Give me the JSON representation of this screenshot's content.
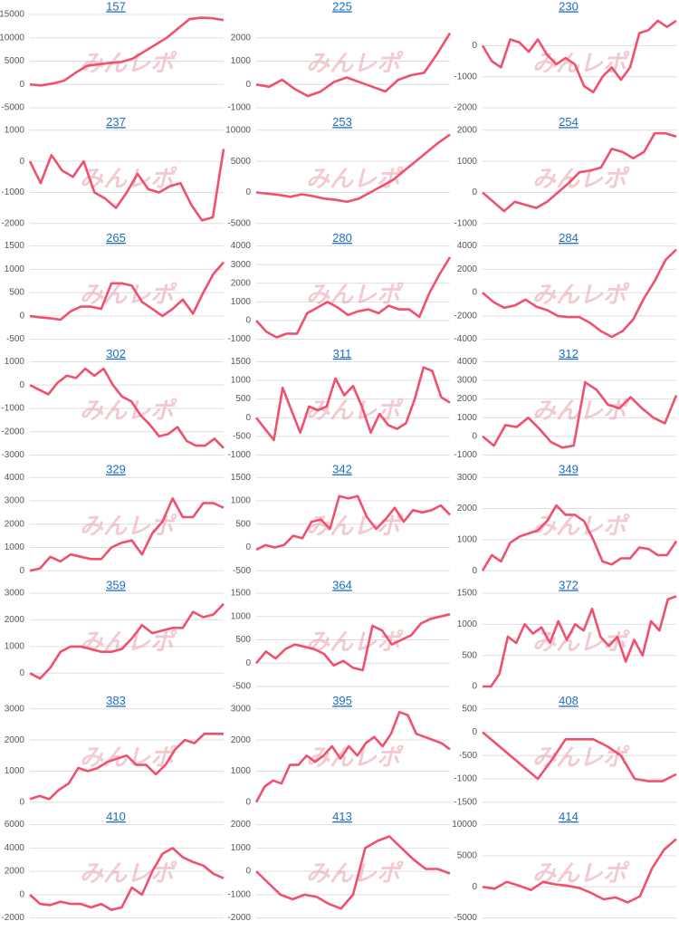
{
  "watermark": "みんレポ",
  "chart_data": [
    {
      "type": "line",
      "title": "157",
      "color": "#f0506e",
      "grid": true,
      "ylim": [
        -5000,
        15000
      ],
      "yticks": [
        -5000,
        0,
        5000,
        10000,
        15000
      ],
      "values": [
        0,
        -200,
        200,
        800,
        2500,
        4000,
        4300,
        4600,
        4800,
        5500,
        7000,
        8500,
        10000,
        12000,
        14000,
        14300,
        14200,
        13800
      ]
    },
    {
      "type": "line",
      "title": "225",
      "color": "#f0506e",
      "grid": true,
      "ylim": [
        -1000,
        3000
      ],
      "yticks": [
        -1000,
        0,
        1000,
        2000
      ],
      "values": [
        0,
        -100,
        200,
        -200,
        -500,
        -300,
        100,
        300,
        100,
        -100,
        -300,
        200,
        400,
        500,
        1300,
        2200
      ]
    },
    {
      "type": "line",
      "title": "230",
      "color": "#f0506e",
      "grid": true,
      "ylim": [
        -2000,
        1000
      ],
      "yticks": [
        -2000,
        -1000,
        0
      ],
      "values": [
        0,
        -500,
        -700,
        200,
        100,
        -200,
        200,
        -300,
        -600,
        -400,
        -600,
        -1300,
        -1500,
        -1000,
        -700,
        -1100,
        -700,
        400,
        500,
        800,
        600,
        800
      ]
    },
    {
      "type": "line",
      "title": "237",
      "color": "#f0506e",
      "grid": true,
      "ylim": [
        -2000,
        1000
      ],
      "yticks": [
        -2000,
        -1000,
        0,
        1000
      ],
      "values": [
        0,
        -700,
        200,
        -300,
        -500,
        0,
        -1000,
        -1200,
        -1500,
        -1000,
        -400,
        -900,
        -1000,
        -800,
        -700,
        -1400,
        -1900,
        -1800,
        400
      ]
    },
    {
      "type": "line",
      "title": "253",
      "color": "#f0506e",
      "grid": true,
      "ylim": [
        -5000,
        10000
      ],
      "yticks": [
        -5000,
        0,
        5000,
        10000
      ],
      "values": [
        0,
        -200,
        -400,
        -700,
        -300,
        -600,
        -1000,
        -1200,
        -1500,
        -1000,
        0,
        1000,
        2000,
        3500,
        5000,
        6500,
        8000,
        9300
      ]
    },
    {
      "type": "line",
      "title": "254",
      "color": "#f0506e",
      "grid": true,
      "ylim": [
        -1000,
        2000
      ],
      "yticks": [
        -1000,
        0,
        1000,
        2000
      ],
      "values": [
        0,
        -300,
        -600,
        -300,
        -400,
        -500,
        -300,
        0,
        300,
        650,
        700,
        800,
        1400,
        1300,
        1100,
        1300,
        1900,
        1900,
        1800
      ]
    },
    {
      "type": "line",
      "title": "265",
      "color": "#f0506e",
      "grid": true,
      "ylim": [
        -500,
        1500
      ],
      "yticks": [
        -500,
        0,
        500,
        1000,
        1500
      ],
      "values": [
        0,
        -30,
        -50,
        -80,
        100,
        200,
        200,
        150,
        700,
        700,
        650,
        300,
        150,
        0,
        150,
        350,
        50,
        500,
        900,
        1150
      ]
    },
    {
      "type": "line",
      "title": "280",
      "color": "#f0506e",
      "grid": true,
      "ylim": [
        -1000,
        4000
      ],
      "yticks": [
        -1000,
        0,
        1000,
        2000,
        3000,
        4000
      ],
      "values": [
        0,
        -600,
        -900,
        -700,
        -700,
        400,
        700,
        1000,
        700,
        300,
        500,
        600,
        400,
        800,
        600,
        600,
        200,
        1500,
        2500,
        3400
      ]
    },
    {
      "type": "line",
      "title": "284",
      "color": "#f0506e",
      "grid": true,
      "ylim": [
        -4000,
        4000
      ],
      "yticks": [
        -4000,
        -2000,
        0,
        2000,
        4000
      ],
      "values": [
        0,
        -800,
        -1300,
        -1100,
        -600,
        -1200,
        -1500,
        -2000,
        -2100,
        -2100,
        -2600,
        -3300,
        -3800,
        -3300,
        -2300,
        -500,
        1000,
        2800,
        3700
      ]
    },
    {
      "type": "line",
      "title": "302",
      "color": "#f0506e",
      "grid": true,
      "ylim": [
        -3000,
        1000
      ],
      "yticks": [
        -3000,
        -2000,
        -1000,
        0,
        1000
      ],
      "values": [
        0,
        -200,
        -400,
        100,
        400,
        300,
        700,
        400,
        700,
        0,
        -500,
        -700,
        -1300,
        -1700,
        -2200,
        -2100,
        -1800,
        -2400,
        -2600,
        -2600,
        -2300,
        -2700
      ]
    },
    {
      "type": "line",
      "title": "311",
      "color": "#f0506e",
      "grid": true,
      "ylim": [
        -1000,
        1500
      ],
      "yticks": [
        -1000,
        -500,
        0,
        500,
        1000,
        1500
      ],
      "values": [
        0,
        -300,
        -600,
        800,
        200,
        -400,
        300,
        200,
        300,
        1050,
        600,
        850,
        300,
        -400,
        100,
        -200,
        -300,
        -150,
        500,
        1350,
        1250,
        550,
        400
      ]
    },
    {
      "type": "line",
      "title": "312",
      "color": "#f0506e",
      "grid": true,
      "ylim": [
        -1000,
        4000
      ],
      "yticks": [
        -1000,
        0,
        1000,
        2000,
        3000,
        4000
      ],
      "values": [
        0,
        -500,
        600,
        500,
        1000,
        400,
        -300,
        -600,
        -500,
        2900,
        2500,
        1700,
        1500,
        2100,
        1500,
        1000,
        700,
        2200
      ]
    },
    {
      "type": "line",
      "title": "329",
      "color": "#f0506e",
      "grid": true,
      "ylim": [
        0,
        4000
      ],
      "yticks": [
        0,
        1000,
        2000,
        3000,
        4000
      ],
      "values": [
        0,
        100,
        600,
        400,
        700,
        600,
        500,
        500,
        1000,
        1200,
        1300,
        700,
        1600,
        2100,
        3100,
        2300,
        2300,
        2900,
        2900,
        2700
      ]
    },
    {
      "type": "line",
      "title": "342",
      "color": "#f0506e",
      "grid": true,
      "ylim": [
        -500,
        1500
      ],
      "yticks": [
        -500,
        0,
        500,
        1000,
        1500
      ],
      "values": [
        -50,
        50,
        0,
        50,
        250,
        200,
        550,
        600,
        400,
        1100,
        1050,
        1100,
        650,
        400,
        600,
        850,
        550,
        800,
        750,
        800,
        900,
        700
      ]
    },
    {
      "type": "line",
      "title": "349",
      "color": "#f0506e",
      "grid": true,
      "ylim": [
        0,
        3000
      ],
      "yticks": [
        0,
        1000,
        2000,
        3000
      ],
      "values": [
        0,
        500,
        300,
        900,
        1100,
        1200,
        1300,
        1600,
        2100,
        1800,
        1800,
        1600,
        1000,
        300,
        200,
        400,
        400,
        750,
        700,
        500,
        500,
        950
      ]
    },
    {
      "type": "line",
      "title": "359",
      "color": "#f0506e",
      "grid": true,
      "ylim": [
        -500,
        3000
      ],
      "yticks": [
        0,
        1000,
        2000,
        3000
      ],
      "values": [
        0,
        -200,
        200,
        800,
        1000,
        1000,
        900,
        800,
        800,
        900,
        1300,
        1800,
        1500,
        1600,
        1700,
        1700,
        2300,
        2100,
        2200,
        2600
      ]
    },
    {
      "type": "line",
      "title": "364",
      "color": "#f0506e",
      "grid": true,
      "ylim": [
        -500,
        1500
      ],
      "yticks": [
        -500,
        0,
        500,
        1000,
        1500
      ],
      "values": [
        0,
        250,
        100,
        300,
        400,
        350,
        300,
        200,
        -50,
        50,
        -100,
        -150,
        800,
        700,
        400,
        500,
        600,
        850,
        950,
        1000,
        1050
      ]
    },
    {
      "type": "line",
      "title": "372",
      "color": "#f0506e",
      "grid": true,
      "ylim": [
        0,
        1500
      ],
      "yticks": [
        0,
        500,
        1000,
        1500
      ],
      "values": [
        0,
        0,
        200,
        800,
        700,
        1000,
        850,
        950,
        700,
        1050,
        750,
        1000,
        900,
        1250,
        800,
        650,
        800,
        400,
        750,
        500,
        1050,
        900,
        1400,
        1450
      ]
    },
    {
      "type": "line",
      "title": "383",
      "color": "#f0506e",
      "grid": true,
      "ylim": [
        0,
        3000
      ],
      "yticks": [
        0,
        1000,
        2000,
        3000
      ],
      "values": [
        100,
        200,
        100,
        400,
        600,
        1100,
        1000,
        1100,
        1300,
        1400,
        1500,
        1200,
        1200,
        900,
        1200,
        1700,
        2000,
        1900,
        2200,
        2200,
        2200
      ]
    },
    {
      "type": "line",
      "title": "395",
      "color": "#f0506e",
      "grid": true,
      "ylim": [
        0,
        3000
      ],
      "yticks": [
        0,
        1000,
        2000,
        3000
      ],
      "values": [
        0,
        500,
        700,
        600,
        1200,
        1200,
        1500,
        1300,
        1500,
        1800,
        1400,
        1800,
        1500,
        1900,
        2100,
        1800,
        2200,
        2900,
        2800,
        2200,
        2100,
        2000,
        1900,
        1700
      ]
    },
    {
      "type": "line",
      "title": "408",
      "color": "#f0506e",
      "grid": true,
      "ylim": [
        -1500,
        500
      ],
      "yticks": [
        -1500,
        -1000,
        -500,
        0,
        500
      ],
      "values": [
        0,
        -250,
        -500,
        -750,
        -1000,
        -600,
        -150,
        -150,
        -150,
        -300,
        -500,
        -1000,
        -1050,
        -1050,
        -900
      ]
    },
    {
      "type": "line",
      "title": "410",
      "color": "#f0506e",
      "grid": true,
      "ylim": [
        -2000,
        6000
      ],
      "yticks": [
        -2000,
        0,
        2000,
        4000,
        6000
      ],
      "values": [
        0,
        -800,
        -900,
        -600,
        -800,
        -800,
        -1100,
        -800,
        -1300,
        -1100,
        600,
        0,
        2000,
        3500,
        4000,
        3200,
        2800,
        2500,
        1800,
        1400
      ]
    },
    {
      "type": "line",
      "title": "413",
      "color": "#f0506e",
      "grid": true,
      "ylim": [
        -2000,
        2000
      ],
      "yticks": [
        -2000,
        -1000,
        0,
        1000,
        2000
      ],
      "values": [
        0,
        -500,
        -1000,
        -1200,
        -1000,
        -1100,
        -1400,
        -1600,
        -1000,
        1000,
        1300,
        1500,
        1000,
        500,
        100,
        100,
        -100
      ]
    },
    {
      "type": "line",
      "title": "414",
      "color": "#f0506e",
      "grid": true,
      "ylim": [
        -5000,
        10000
      ],
      "yticks": [
        -5000,
        0,
        5000,
        10000
      ],
      "values": [
        0,
        -300,
        800,
        200,
        -500,
        800,
        400,
        200,
        -200,
        -1000,
        -2000,
        -1700,
        -2500,
        -1500,
        3000,
        6000,
        7700
      ]
    }
  ]
}
